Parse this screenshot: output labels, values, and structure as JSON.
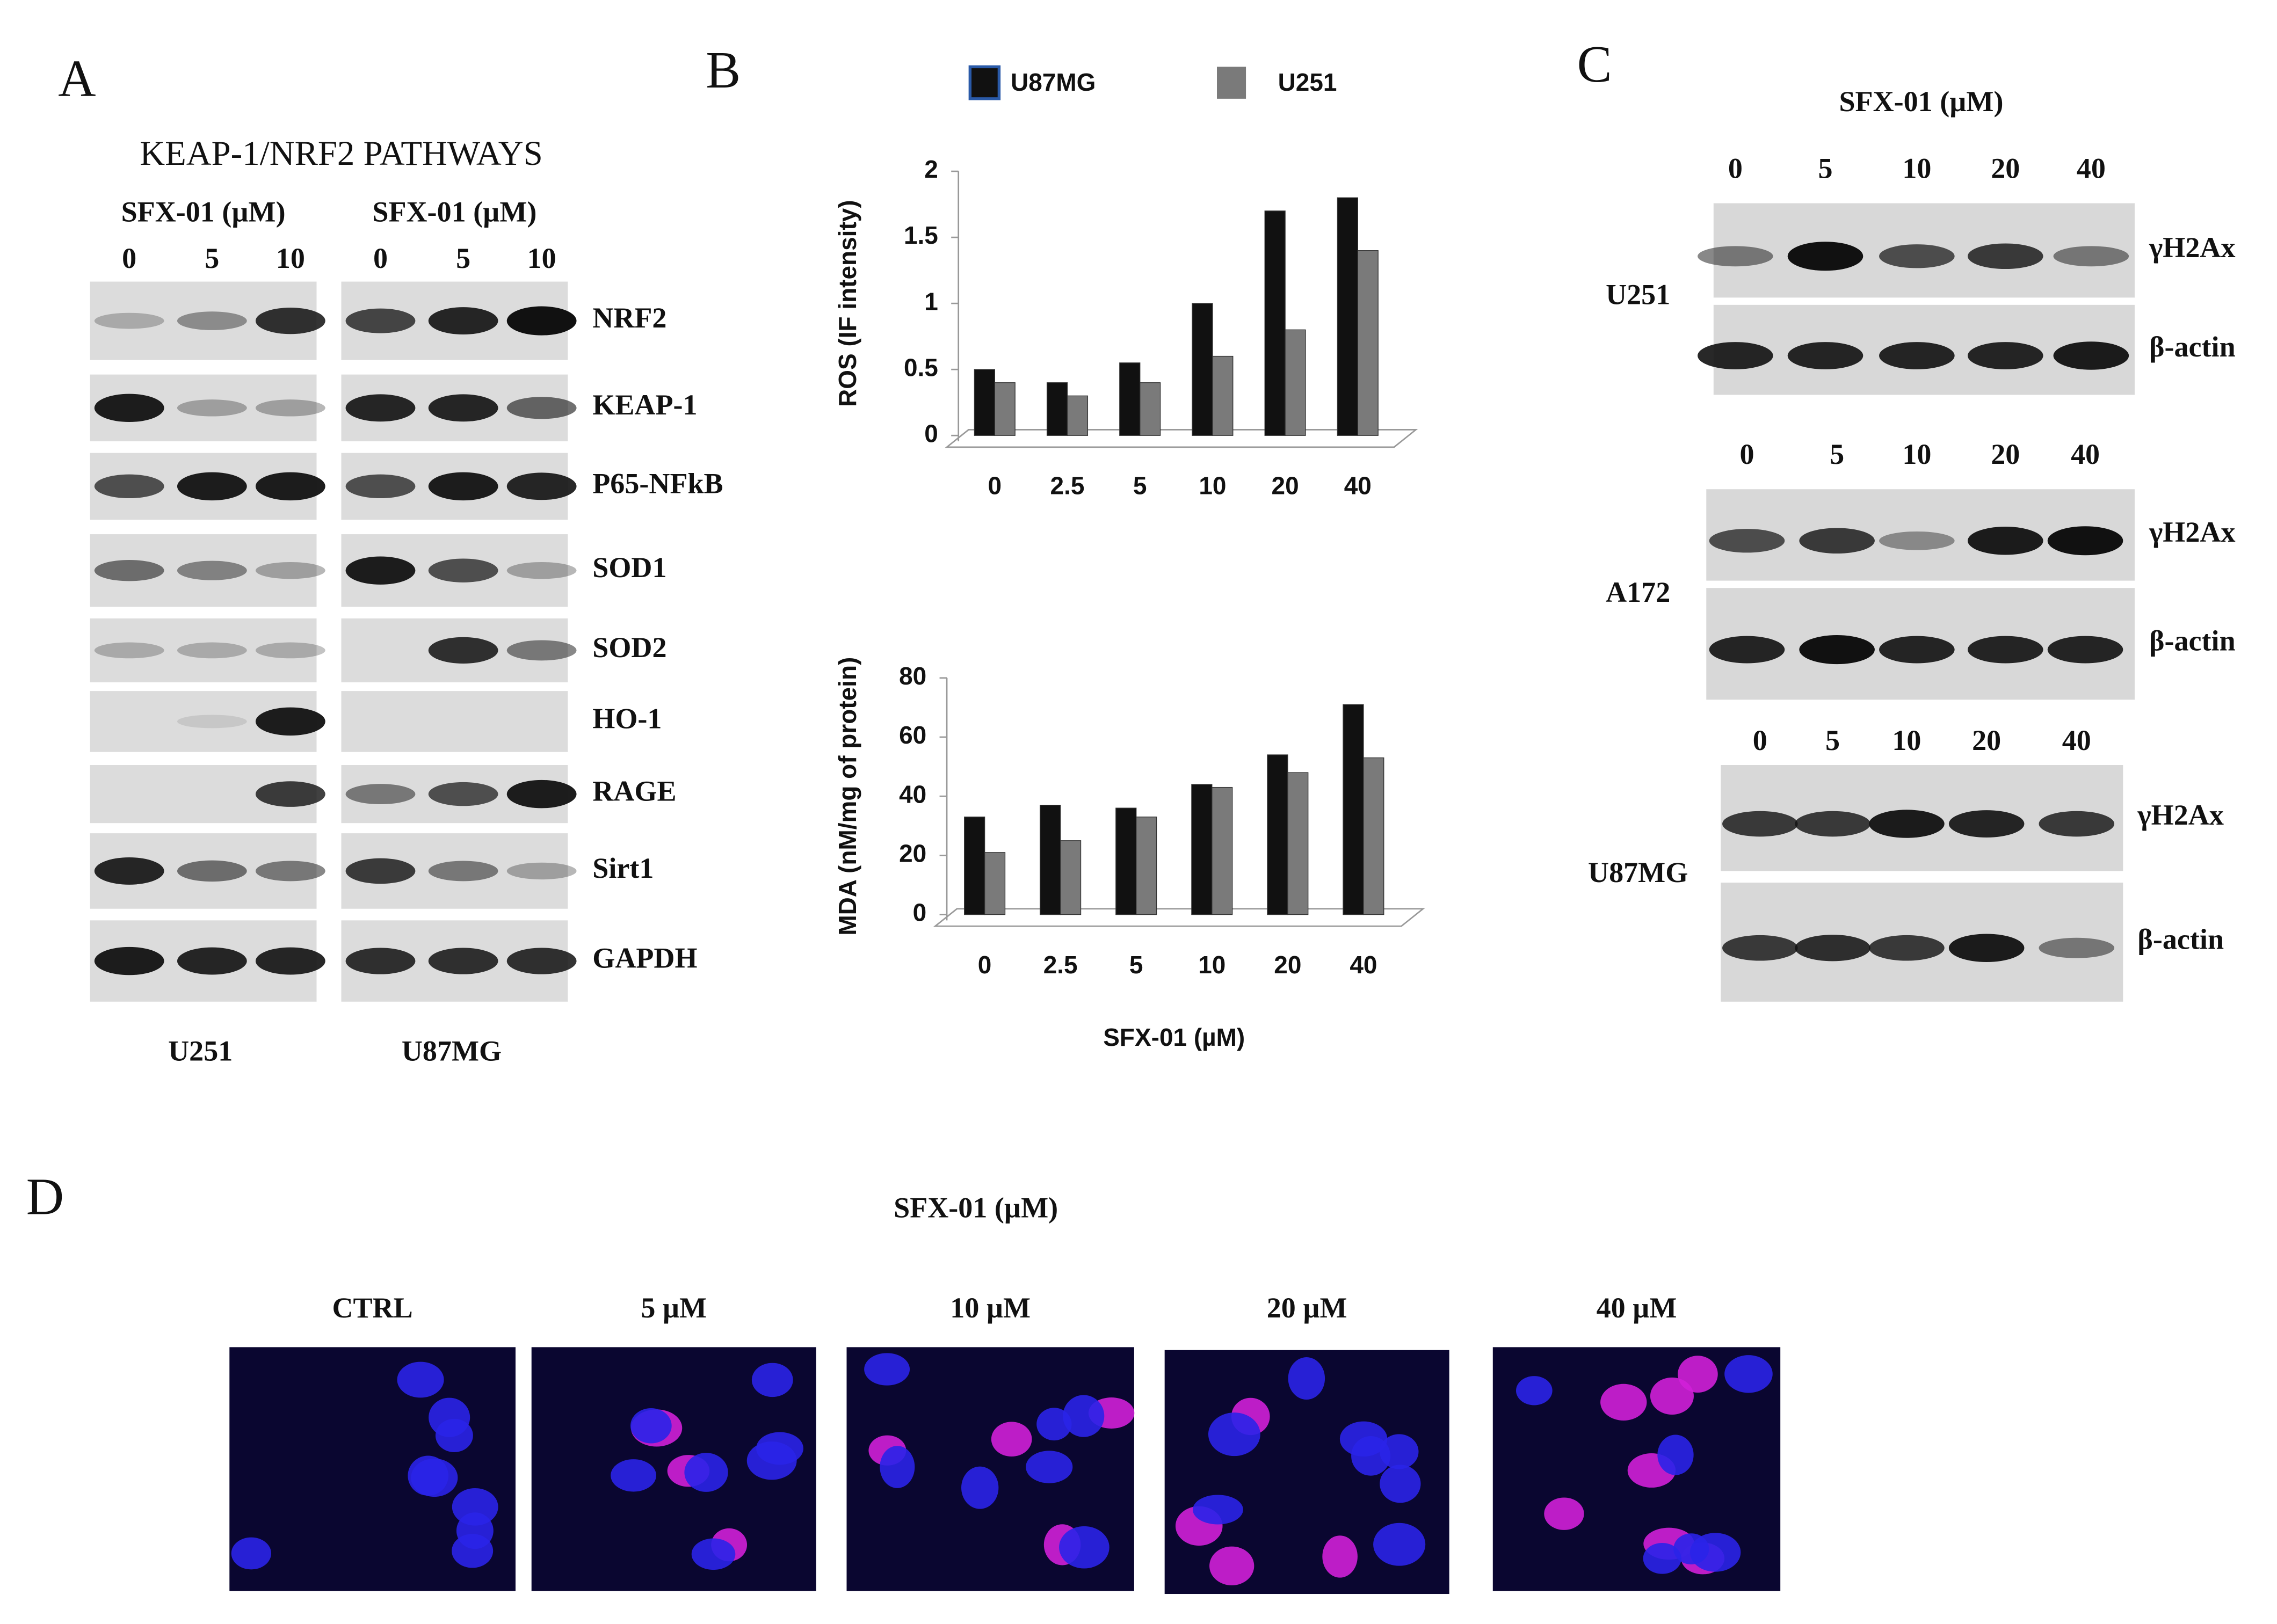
{
  "panel_a": {
    "label": "A",
    "title": "KEAP-1/NRF2 PATHWAYS",
    "blots": [
      {
        "treatment": "SFX-01 (µM)",
        "lanes": [
          "0",
          "5",
          "10"
        ],
        "cell_line": "U251"
      },
      {
        "treatment": "SFX-01 (µM)",
        "lanes": [
          "0",
          "5",
          "10"
        ],
        "cell_line": "U87MG"
      }
    ],
    "proteins": [
      "NRF2",
      "KEAP-1",
      "P65-NFkB",
      "SOD1",
      "SOD2",
      "HO-1",
      "RAGE",
      "Sirt1",
      "GAPDH"
    ]
  },
  "panel_b": {
    "label": "B"
  },
  "chart_data": [
    {
      "type": "bar",
      "ylabel": "ROS (IF intensity)",
      "legend": "top",
      "categories": [
        "0",
        "2.5",
        "5",
        "10",
        "20",
        "40"
      ],
      "series": [
        {
          "name": "U87MG",
          "color": "#111111",
          "values": [
            0.5,
            0.4,
            0.55,
            1.0,
            1.7,
            1.8
          ]
        },
        {
          "name": "U251",
          "color": "#7a7a7a",
          "values": [
            0.4,
            0.3,
            0.4,
            0.6,
            0.8,
            1.4
          ]
        }
      ],
      "ylim": [
        0,
        2
      ],
      "yticks": [
        0,
        0.5,
        1,
        1.5,
        2
      ]
    },
    {
      "type": "bar",
      "ylabel": "MDA  (nM/mg of protein)",
      "xlabel": "SFX-01 (µM)",
      "categories": [
        "0",
        "2.5",
        "5",
        "10",
        "20",
        "40"
      ],
      "series": [
        {
          "color": "#111111",
          "values": [
            33,
            37,
            36,
            44,
            54,
            71
          ]
        },
        {
          "color": "#7a7a7a",
          "values": [
            21,
            25,
            33,
            43,
            48,
            53
          ]
        }
      ],
      "ylim": [
        0,
        80
      ],
      "yticks": [
        0,
        20,
        40,
        60,
        80
      ]
    }
  ],
  "panel_c": {
    "label": "C",
    "treatment": "SFX-01 (µM)",
    "blots": [
      {
        "cell_line": "U251",
        "lanes": [
          "0",
          "5",
          "10",
          "20",
          "40"
        ],
        "proteins": [
          "γH2Ax",
          "β-actin"
        ]
      },
      {
        "cell_line": "A172",
        "lanes": [
          "0",
          "5",
          "10",
          "20",
          "40"
        ],
        "proteins": [
          "γH2Ax",
          "β-actin"
        ]
      },
      {
        "cell_line": "U87MG",
        "lanes": [
          "0",
          "5",
          "10",
          "20",
          "40"
        ],
        "proteins": [
          "γH2Ax",
          "β-actin"
        ]
      }
    ]
  },
  "panel_d": {
    "label": "D",
    "treatment": "SFX-01 (µM)",
    "images": [
      "CTRL",
      "5 µM",
      "10 µM",
      "20 µM",
      "40 µM"
    ]
  }
}
